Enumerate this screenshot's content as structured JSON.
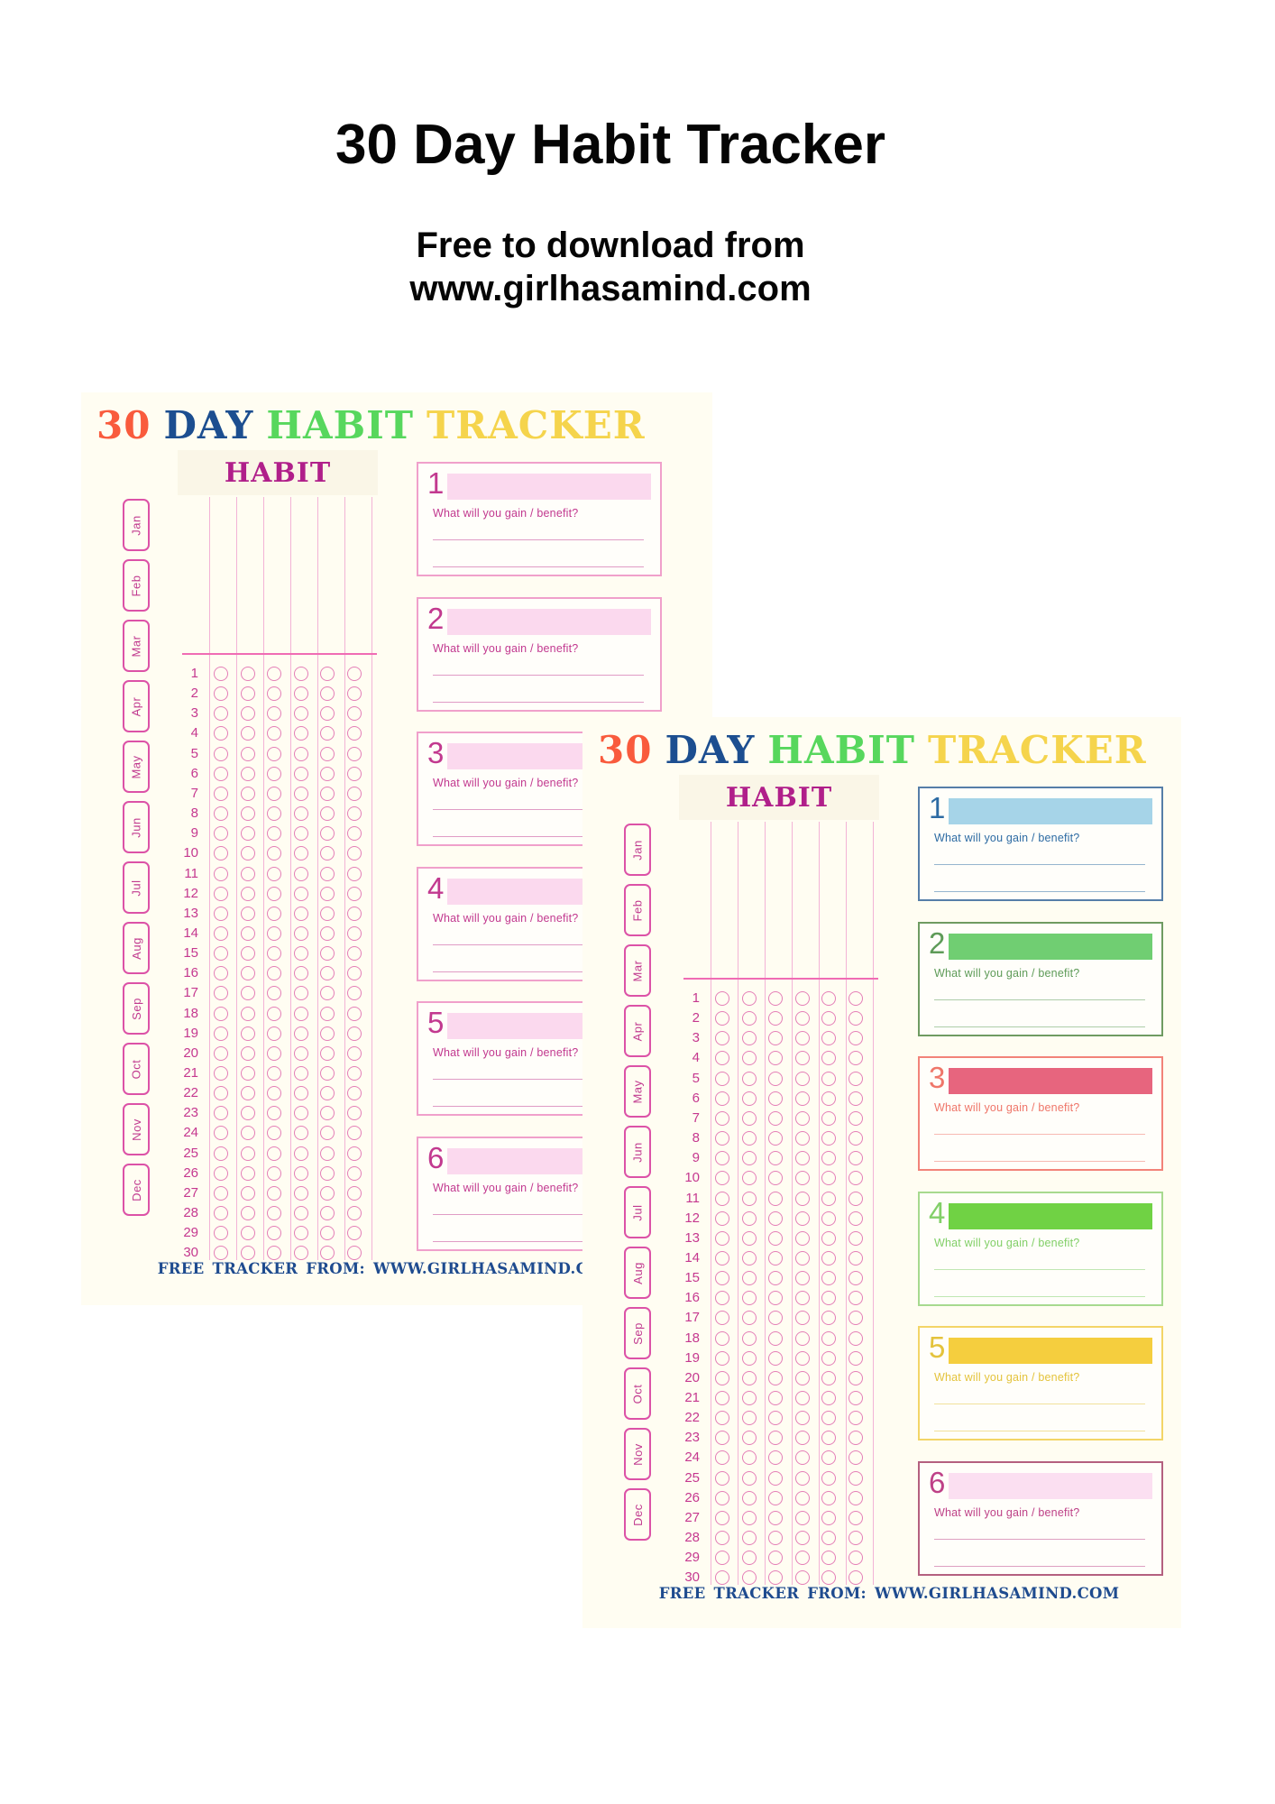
{
  "page": {
    "title": "30 Day Habit Tracker",
    "subtitle_lines": [
      "Free to download from",
      "www.girlhasamind.com"
    ]
  },
  "tracker_sheet_template": {
    "title_words": [
      {
        "text": "30",
        "color": "#f95b3d"
      },
      {
        "text": "DAY",
        "color": "#1c4e90"
      },
      {
        "text": "HABIT",
        "color": "#57d75d"
      },
      {
        "text": "TRACKER",
        "color": "#f5d44c"
      }
    ],
    "column_header": "HABIT",
    "months": [
      "Jan",
      "Feb",
      "Mar",
      "Apr",
      "May",
      "Jun",
      "Jul",
      "Aug",
      "Sep",
      "Oct",
      "Nov",
      "Dec"
    ],
    "day_numbers": [
      1,
      2,
      3,
      4,
      5,
      6,
      7,
      8,
      9,
      10,
      11,
      12,
      13,
      14,
      15,
      16,
      17,
      18,
      19,
      20,
      21,
      22,
      23,
      24,
      25,
      26,
      27,
      28,
      29,
      30
    ],
    "habit_columns": 6,
    "benefit_prompt": "What will you gain / benefit?",
    "footer": "FREE TRACKER FROM:  WWW.GIRLHASAMIND.COM",
    "colors": {
      "sheet_background": "#fffdf2",
      "header_band": "#faf6e7",
      "column_header_text": "#b01f8a",
      "month_border": "#dc52a7",
      "month_text": "#c13a8f",
      "grid_line": "#f3b3d6",
      "grid_separator": "#f06cb4",
      "circle_outline": "#e47fb7",
      "day_number_text": "#c5388f",
      "footer_text": "#1e4b8f"
    }
  },
  "sheets": [
    {
      "name": "pink-sheet",
      "entries": [
        {
          "number": "1",
          "border": "#f0a0cb",
          "fill": "#fbd9ee",
          "text": "#c2398f"
        },
        {
          "number": "2",
          "border": "#f0a0cb",
          "fill": "#fbd9ee",
          "text": "#c2398f"
        },
        {
          "number": "3",
          "border": "#f0a0cb",
          "fill": "#fbd9ee",
          "text": "#c2398f"
        },
        {
          "number": "4",
          "border": "#f0a0cb",
          "fill": "#fbd9ee",
          "text": "#c2398f"
        },
        {
          "number": "5",
          "border": "#f0a0cb",
          "fill": "#fbd9ee",
          "text": "#c2398f"
        },
        {
          "number": "6",
          "border": "#f0a0cb",
          "fill": "#fbd9ee",
          "text": "#c2398f"
        }
      ]
    },
    {
      "name": "rainbow-sheet",
      "entries": [
        {
          "number": "1",
          "border": "#567ea8",
          "fill": "#a6d4e8",
          "text": "#2d6ba3"
        },
        {
          "number": "2",
          "border": "#6f9b62",
          "fill": "#70ce72",
          "text": "#5e9b58"
        },
        {
          "number": "3",
          "border": "#f28379",
          "fill": "#e7657e",
          "text": "#ef7669"
        },
        {
          "number": "4",
          "border": "#a7da8f",
          "fill": "#70d244",
          "text": "#82cf68"
        },
        {
          "number": "5",
          "border": "#f3d567",
          "fill": "#f5ce3e",
          "text": "#e4c33c"
        },
        {
          "number": "6",
          "border": "#b4607f",
          "fill": "#fbdff1",
          "text": "#be4187"
        }
      ]
    }
  ]
}
